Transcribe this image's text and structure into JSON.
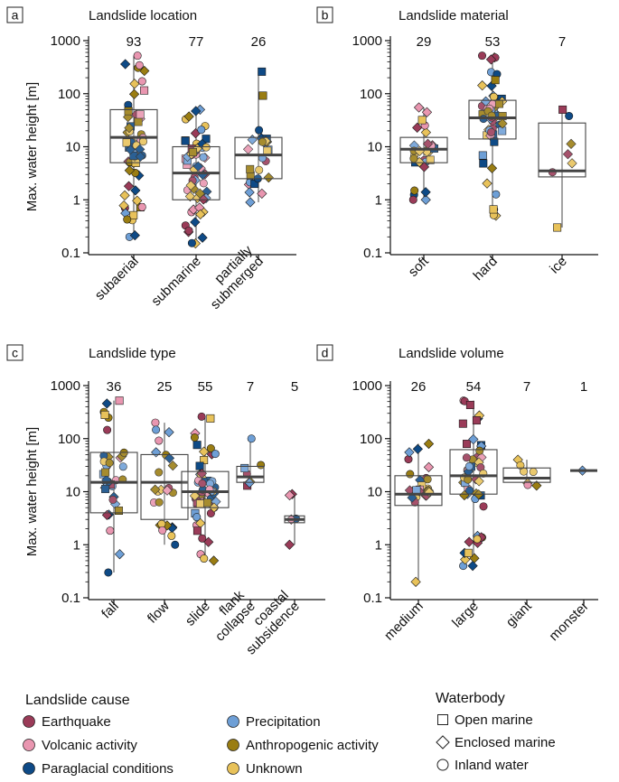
{
  "colors": {
    "earthquake": "#9a3b58",
    "volcanic": "#e996b0",
    "paraglacial": "#0e4a86",
    "precipitation": "#6e9fd6",
    "anthropogenic": "#9a7d12",
    "unknown": "#e8c25a"
  },
  "y_axis": {
    "label": "Max. water height [m]",
    "ticks": [
      "0.1",
      "1",
      "10",
      "100",
      "1000"
    ],
    "ylim": [
      0.1,
      1000
    ],
    "scale": "log"
  },
  "chart_data": [
    {
      "id": "a",
      "type": "box",
      "title": "Landslide location",
      "categories": [
        "subaerial",
        "submarine",
        "partially submerged"
      ],
      "counts": [
        "93",
        "77",
        "26"
      ],
      "box": [
        {
          "whislo": 0.2,
          "q1": 5,
          "median": 15,
          "q3": 50,
          "whishi": 520
        },
        {
          "whislo": 0.15,
          "q1": 1,
          "median": 3.2,
          "q3": 10,
          "whishi": 50
        },
        {
          "whislo": 0.9,
          "q1": 2.5,
          "median": 7,
          "q3": 15,
          "whishi": 260
        }
      ]
    },
    {
      "id": "b",
      "type": "box",
      "title": "Landslide material",
      "categories": [
        "soft",
        "hard",
        "ice"
      ],
      "counts": [
        "29",
        "53",
        "7"
      ],
      "box": [
        {
          "whislo": 1,
          "q1": 5,
          "median": 9,
          "q3": 15,
          "whishi": 55
        },
        {
          "whislo": 0.5,
          "q1": 14,
          "median": 35,
          "q3": 75,
          "whishi": 520
        },
        {
          "whislo": 0.3,
          "q1": 2.7,
          "median": 3.5,
          "q3": 28,
          "whishi": 50
        }
      ]
    },
    {
      "id": "c",
      "type": "box",
      "title": "Landslide type",
      "categories": [
        "fall",
        "flow",
        "slide",
        "flank collapse",
        "coastal subsidence"
      ],
      "counts": [
        "36",
        "25",
        "55",
        "7",
        "5"
      ],
      "box": [
        {
          "whislo": 0.3,
          "q1": 4,
          "median": 15,
          "q3": 55,
          "whishi": 520
        },
        {
          "whislo": 1,
          "q1": 3,
          "median": 15,
          "q3": 50,
          "whishi": 200
        },
        {
          "whislo": 0.5,
          "q1": 5,
          "median": 10,
          "q3": 24,
          "whishi": 260
        },
        {
          "whislo": 13,
          "q1": 15,
          "median": 19,
          "q3": 30,
          "whishi": 100
        },
        {
          "whislo": 1,
          "q1": 2.6,
          "median": 3,
          "q3": 3.5,
          "whishi": 9
        }
      ]
    },
    {
      "id": "d",
      "type": "box",
      "title": "Landslide volume",
      "categories": [
        "medium",
        "large",
        "giant",
        "monster"
      ],
      "counts": [
        "26",
        "54",
        "7",
        "1"
      ],
      "box": [
        {
          "whislo": 0.2,
          "q1": 5.5,
          "median": 9,
          "q3": 20,
          "whishi": 80
        },
        {
          "whislo": 0.4,
          "q1": 9,
          "median": 20,
          "q3": 62,
          "whishi": 520
        },
        {
          "whislo": 13,
          "q1": 15,
          "median": 18,
          "q3": 28,
          "whishi": 40
        },
        {
          "whislo": 25,
          "q1": 25,
          "median": 25,
          "q3": 25,
          "whishi": 25
        }
      ]
    }
  ],
  "legend": {
    "cause_title": "Landslide cause",
    "causes": [
      {
        "key": "earthquake",
        "label": "Earthquake"
      },
      {
        "key": "volcanic",
        "label": "Volcanic activity"
      },
      {
        "key": "paraglacial",
        "label": "Paraglacial conditions"
      },
      {
        "key": "precipitation",
        "label": "Precipitation"
      },
      {
        "key": "anthropogenic",
        "label": "Anthropogenic activity"
      },
      {
        "key": "unknown",
        "label": "Unknown"
      }
    ],
    "waterbody_title": "Waterbody",
    "waterbodies": [
      {
        "shape": "square",
        "label": "Open marine"
      },
      {
        "shape": "diamond",
        "label": "Enclosed marine"
      },
      {
        "shape": "circle",
        "label": "Inland water"
      }
    ]
  }
}
